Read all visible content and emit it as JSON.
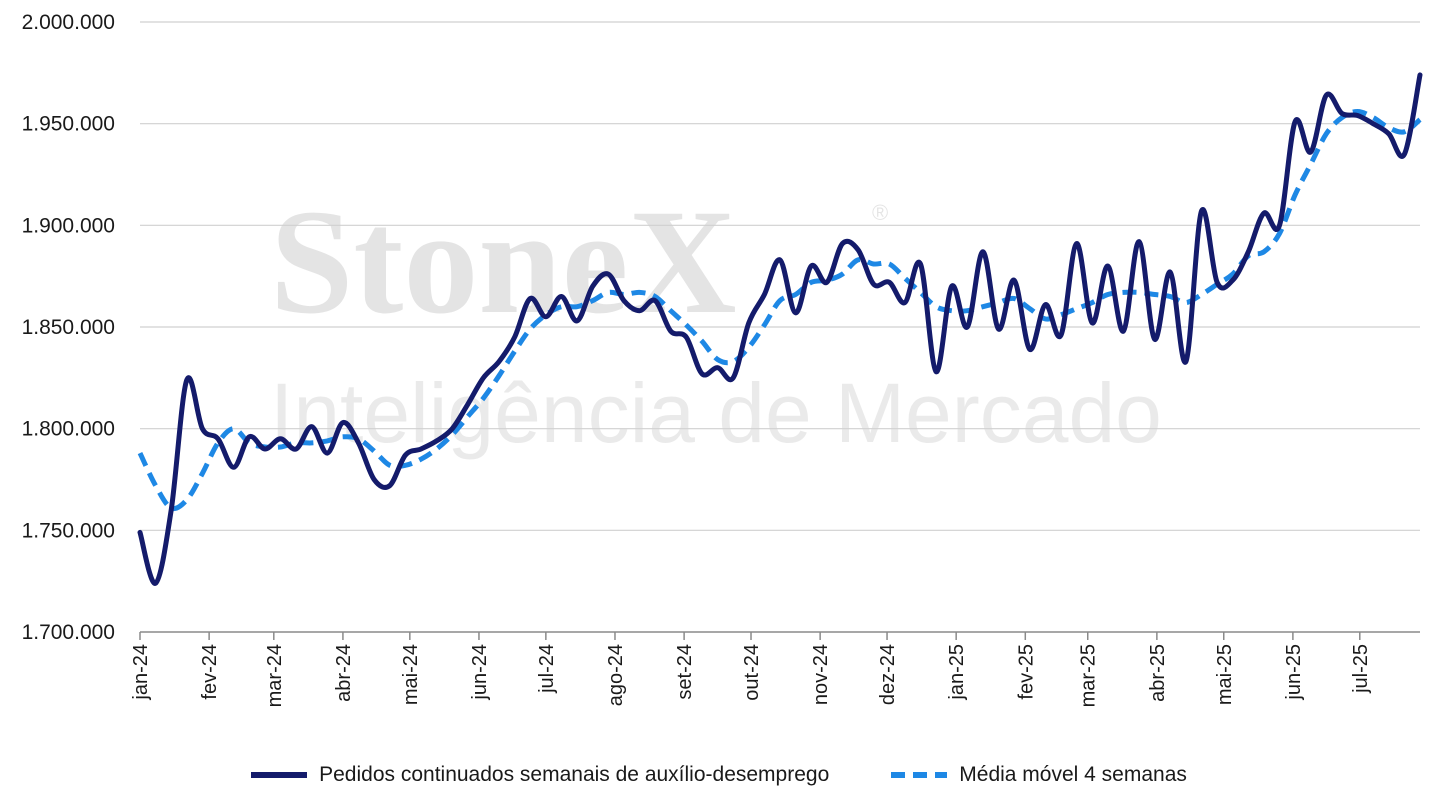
{
  "watermark": {
    "brand": "StoneX",
    "registered": "®",
    "tagline": "Inteligência de Mercado"
  },
  "colors": {
    "series_primary": "#141b6b",
    "series_average": "#1e88e5",
    "grid": "#d0d0d0"
  },
  "chart_data": {
    "type": "line",
    "title": "",
    "xlabel": "",
    "ylabel": "",
    "ylim": [
      1700000,
      2000000
    ],
    "yticks": [
      1700000,
      1750000,
      1800000,
      1850000,
      1900000,
      1950000,
      2000000
    ],
    "ytick_labels": [
      "1.700.000",
      "1.750.000",
      "1.800.000",
      "1.850.000",
      "1.900.000",
      "1.950.000",
      "2.000.000"
    ],
    "x_tick_labels": [
      "jan-24",
      "fev-24",
      "mar-24",
      "abr-24",
      "mai-24",
      "jun-24",
      "jul-24",
      "ago-24",
      "set-24",
      "out-24",
      "nov-24",
      "dez-24",
      "jan-25",
      "fev-25",
      "mar-25",
      "abr-25",
      "mai-25",
      "jun-25",
      "jul-25"
    ],
    "grid": "horizontal",
    "legend_position": "bottom",
    "x_unit": "weeks from first week of January 2024",
    "series": [
      {
        "name": "Pedidos continuados semanais de auxílio-desemprego",
        "style": "solid",
        "values": [
          1749000,
          1724000,
          1760000,
          1824000,
          1800000,
          1795000,
          1781000,
          1796000,
          1790000,
          1795000,
          1790000,
          1801000,
          1788000,
          1803000,
          1793000,
          1775000,
          1772000,
          1787000,
          1790000,
          1794000,
          1800000,
          1812000,
          1825000,
          1833000,
          1845000,
          1864000,
          1855000,
          1865000,
          1853000,
          1870000,
          1876000,
          1863000,
          1858000,
          1863000,
          1848000,
          1845000,
          1827000,
          1830000,
          1825000,
          1852000,
          1866000,
          1883000,
          1857000,
          1880000,
          1872000,
          1891000,
          1888000,
          1871000,
          1872000,
          1862000,
          1881000,
          1828000,
          1870000,
          1850000,
          1887000,
          1849000,
          1873000,
          1839000,
          1861000,
          1846000,
          1891000,
          1852000,
          1880000,
          1848000,
          1892000,
          1844000,
          1877000,
          1833000,
          1907000,
          1872000,
          1873000,
          1887000,
          1906000,
          1900000,
          1951000,
          1936000,
          1964000,
          1955000,
          1954000,
          1950000,
          1945000,
          1935000,
          1974000
        ]
      },
      {
        "name": "Média móvel 4 semanas",
        "style": "dashed",
        "values": [
          1788000,
          1772000,
          1761000,
          1765000,
          1778000,
          1793000,
          1800000,
          1793000,
          1791000,
          1791000,
          1793000,
          1793000,
          1794000,
          1796000,
          1795000,
          1789000,
          1782000,
          1782000,
          1785000,
          1790000,
          1797000,
          1806000,
          1815000,
          1826000,
          1838000,
          1849000,
          1856000,
          1860000,
          1860000,
          1863000,
          1867000,
          1866000,
          1867000,
          1865000,
          1858000,
          1851000,
          1843000,
          1834000,
          1833000,
          1840000,
          1851000,
          1863000,
          1866000,
          1872000,
          1873000,
          1876000,
          1883000,
          1881000,
          1881000,
          1874000,
          1867000,
          1860000,
          1858000,
          1858000,
          1860000,
          1862000,
          1864000,
          1859000,
          1854000,
          1856000,
          1859000,
          1862000,
          1866000,
          1867000,
          1867000,
          1866000,
          1865000,
          1862000,
          1866000,
          1871000,
          1876000,
          1885000,
          1887000,
          1896000,
          1915000,
          1930000,
          1945000,
          1953000,
          1956000,
          1953000,
          1948000,
          1946000,
          1952000
        ]
      }
    ]
  }
}
